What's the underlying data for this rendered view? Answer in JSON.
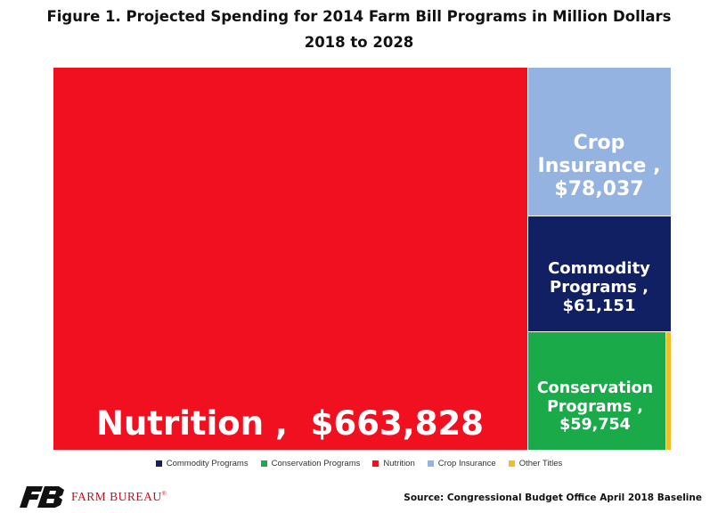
{
  "chart_data": {
    "type": "treemap",
    "title": "Figure 1. Projected Spending for 2014 Farm Bill Programs in Million Dollars",
    "subtitle": "2018 to 2028",
    "series": [
      {
        "name": "Nutrition",
        "value": 663828,
        "value_label": "$663,828",
        "color": "#f01020"
      },
      {
        "name": "Crop Insurance",
        "value": 78037,
        "value_label": "$78,037",
        "color": "#94b3e0"
      },
      {
        "name": "Commodity Programs",
        "value": 61151,
        "value_label": "$61,151",
        "color": "#102063"
      },
      {
        "name": "Conservation Programs",
        "value": 59754,
        "value_label": "$59,754",
        "color": "#1aaa4a"
      },
      {
        "name": "Other Titles",
        "value": 2260,
        "value_label": "",
        "color": "#f2bd24"
      }
    ],
    "legend": {
      "placement": "bottom",
      "entries": [
        {
          "name": "Commodity Programs",
          "color": "#102063"
        },
        {
          "name": "Conservation Programs",
          "color": "#1aaa4a"
        },
        {
          "name": "Nutrition",
          "color": "#f01020"
        },
        {
          "name": "Crop Insurance",
          "color": "#94b3e0"
        },
        {
          "name": "Other Titles",
          "color": "#f2bd24"
        }
      ]
    }
  },
  "labels": {
    "nutrition": "Nutrition ,  $663,828",
    "crop_line1": "Crop",
    "crop_line2": "Insurance ,",
    "crop_line3": "$78,037",
    "commodity_line1": "Commodity",
    "commodity_line2": "Programs ,",
    "commodity_line3": "$61,151",
    "conservation_line1": "Conservation",
    "conservation_line2": "Programs ,",
    "conservation_line3": "$59,754"
  },
  "footer": {
    "logo_text": "FARM BUREAU",
    "logo_mark": "®",
    "logo_color": "#c0111f",
    "source": "Source: Congressional Budget Office April 2018 Baseline"
  }
}
